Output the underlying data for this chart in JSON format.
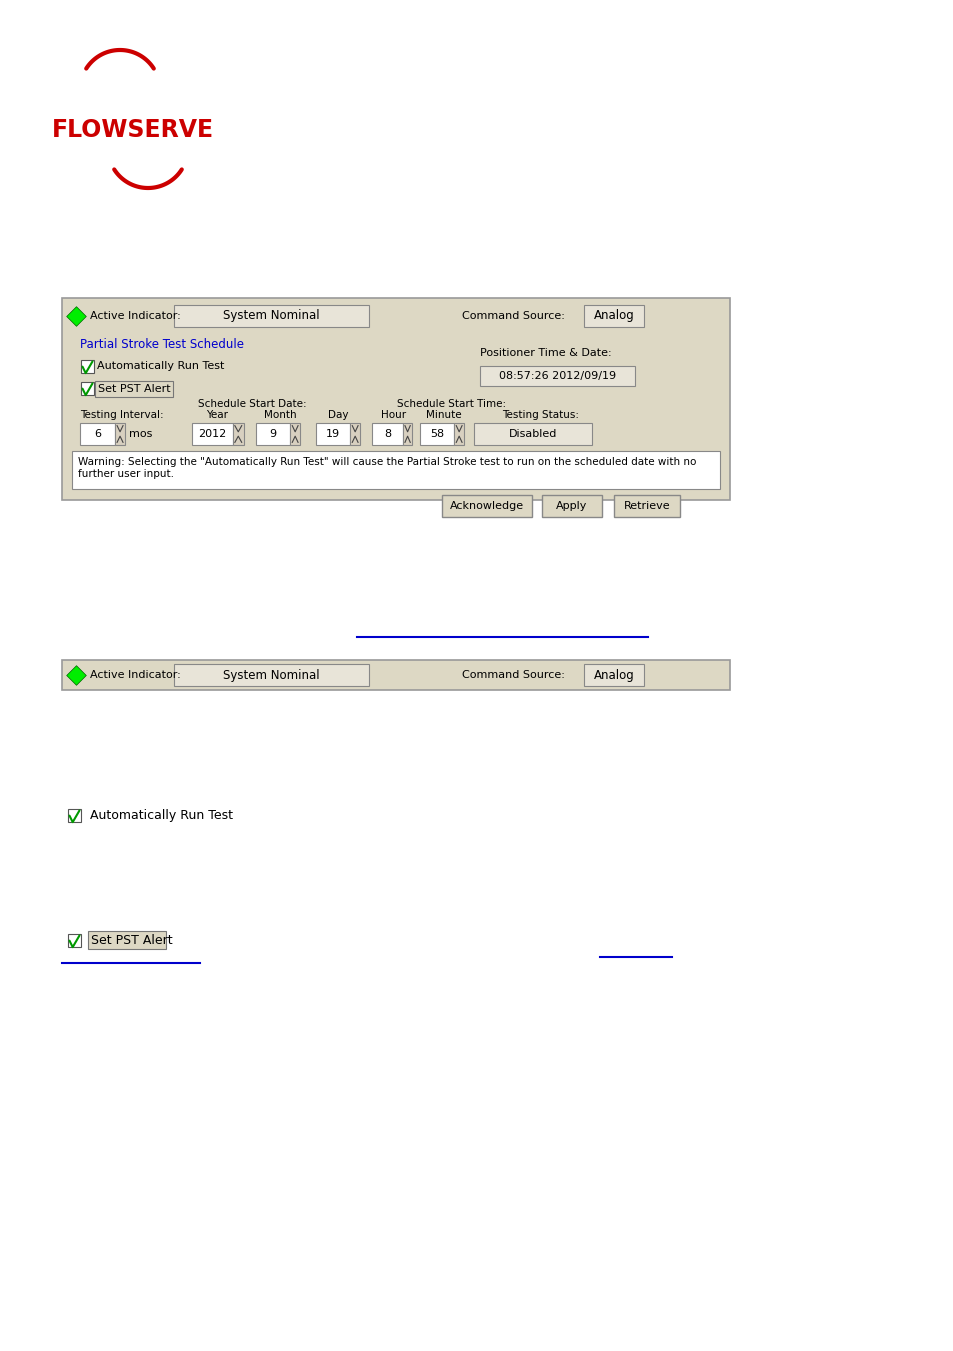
{
  "page_bg": "#ffffff",
  "panel_bg": "#ddd8c4",
  "panel_border": "#aaaaaa",
  "field_bg": "#e8e4d8",
  "white": "#ffffff",
  "active_indicator_label": "Active Indicator:",
  "system_nominal_text": "System Nominal",
  "command_source_label": "Command Source:",
  "analog_text": "Analog",
  "pst_title": "Partial Stroke Test Schedule",
  "pst_title_color": "#0000cc",
  "auto_run_label": "Automatically Run Test",
  "set_pst_label": "Set PST Alert",
  "positioner_label": "Positioner Time & Date:",
  "positioner_value": "08:57:26 2012/09/19",
  "schedule_start_date": "Schedule Start Date:",
  "schedule_start_time": "Schedule Start Time:",
  "year_label": "Year",
  "year_val": "2012",
  "month_label": "Month",
  "month_val": "9",
  "day_label": "Day",
  "day_val": "19",
  "hour_label": "Hour",
  "hour_val": "8",
  "minute_label": "Minute",
  "minute_val": "58",
  "testing_interval_label": "Testing Interval:",
  "interval_val": "6",
  "interval_unit": "mos",
  "testing_status_label": "Testing Status:",
  "testing_status_val": "Disabled",
  "warning_text": "Warning: Selecting the \"Automatically Run Test\" will cause the Partial Stroke test to run on the scheduled date with no\nfurther user input.",
  "btn_acknowledge": "Acknowledge",
  "btn_apply": "Apply",
  "btn_retrieve": "Retrieve"
}
